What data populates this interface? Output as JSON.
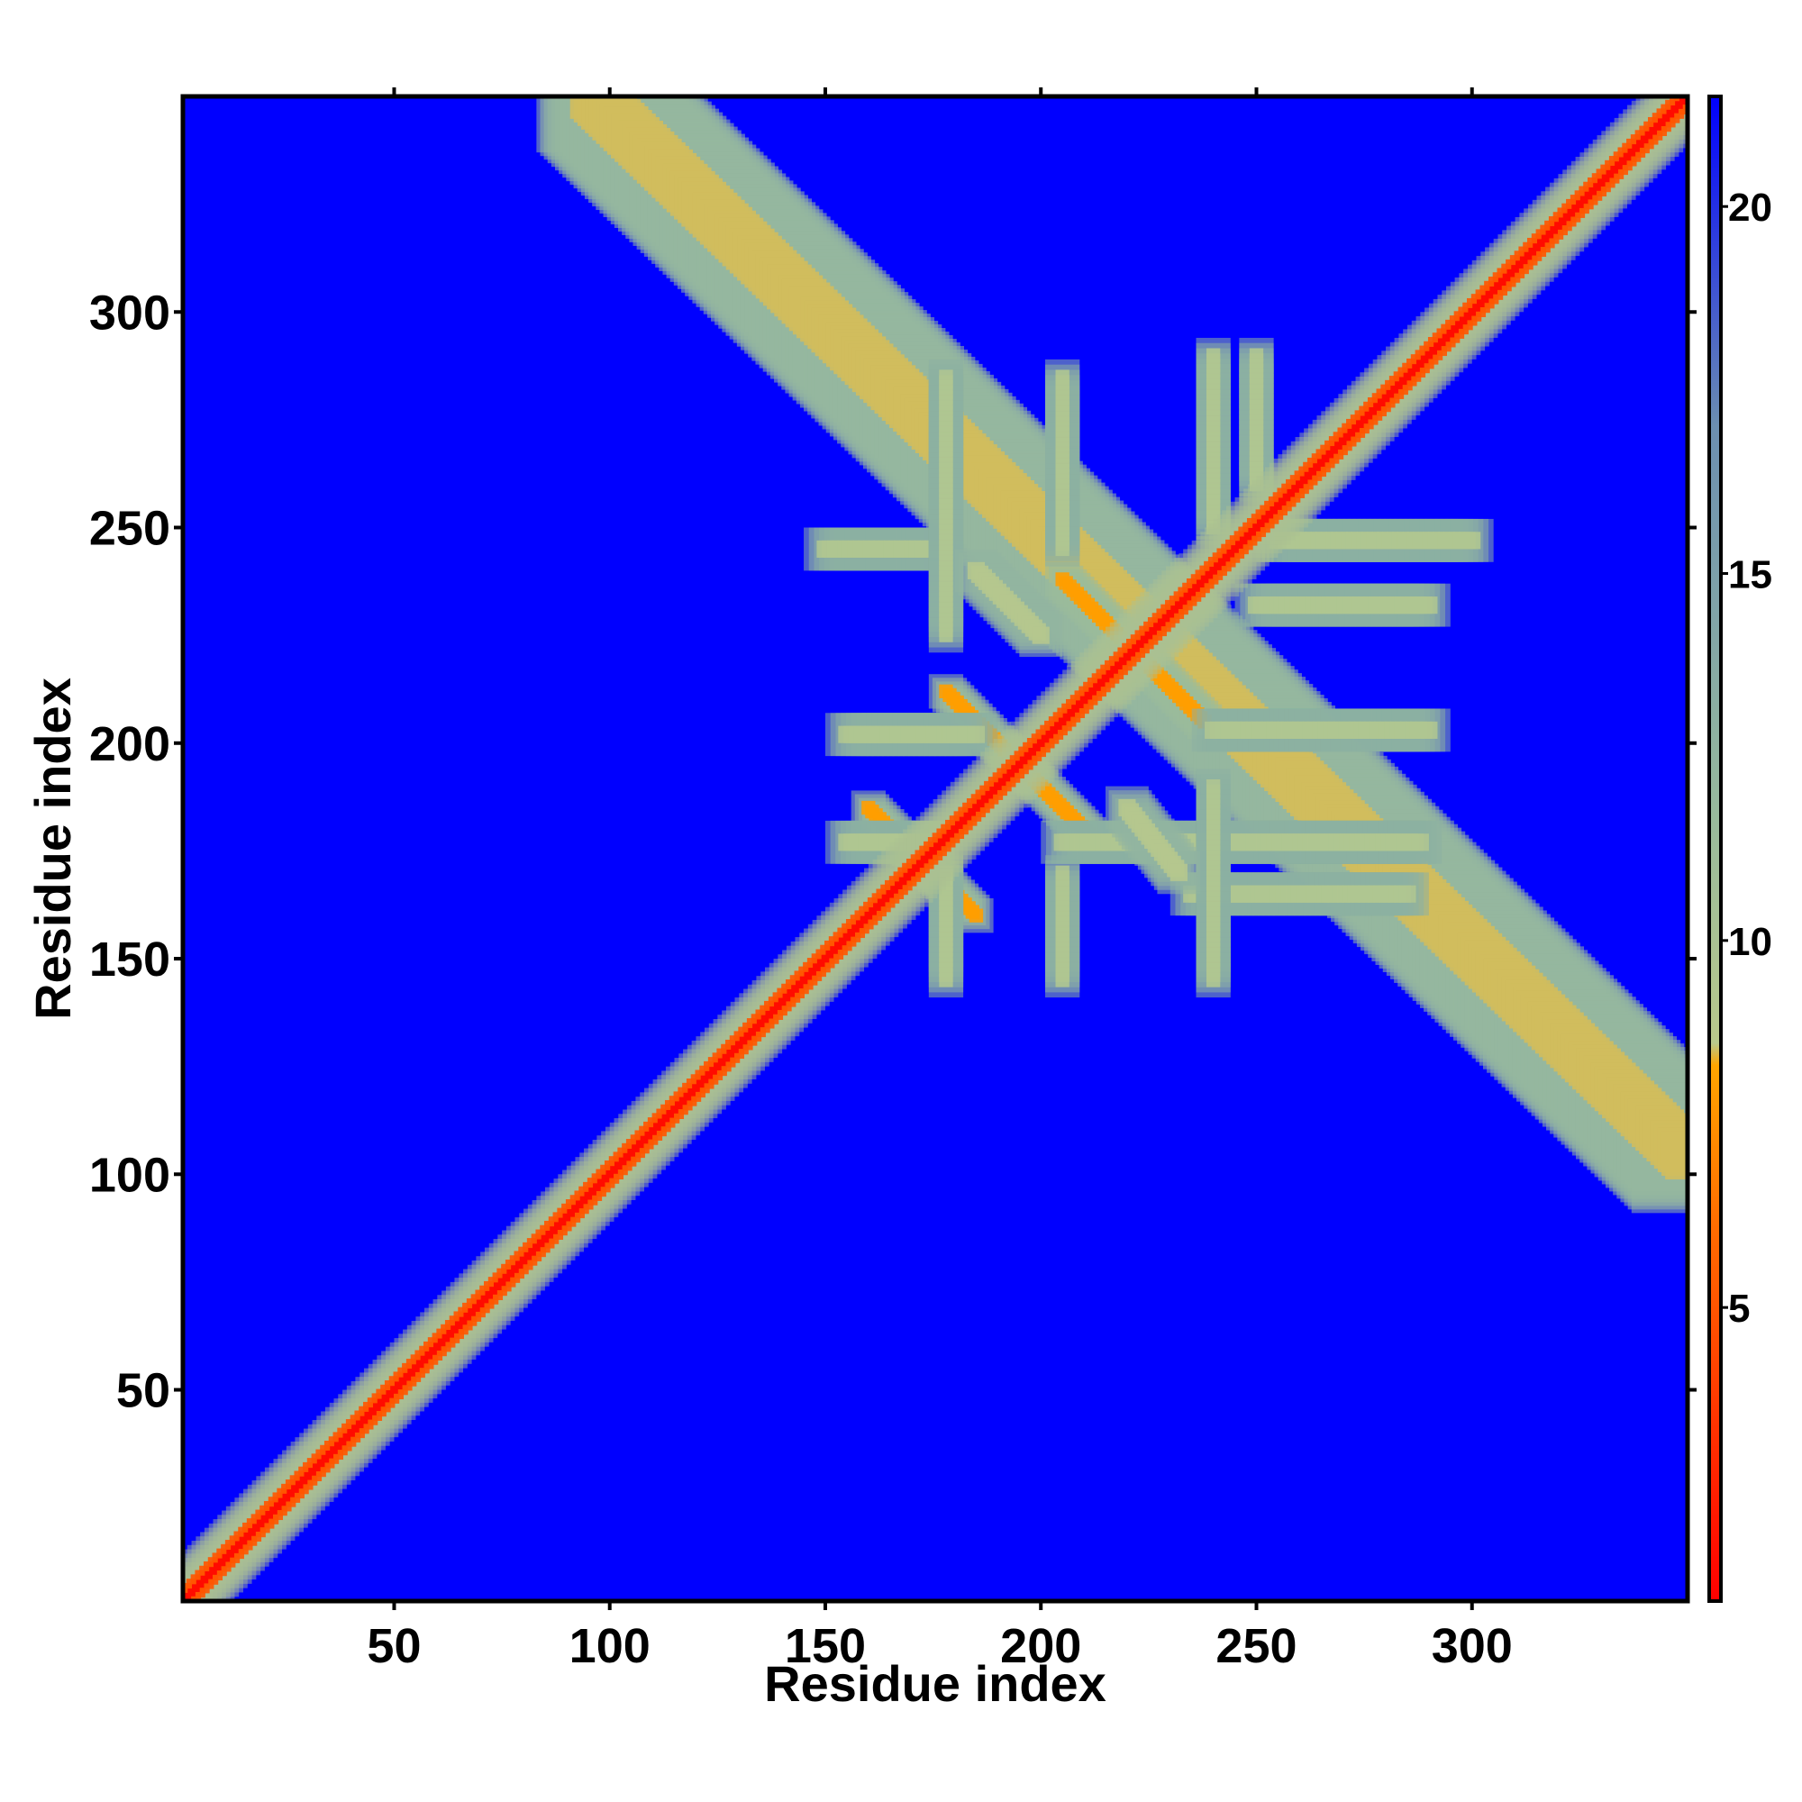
{
  "chart_data": {
    "type": "heatmap",
    "title": "",
    "xlabel": "Residue index",
    "ylabel": "Residue index",
    "xlim": [
      1,
      350
    ],
    "ylim": [
      1,
      350
    ],
    "x_ticks": [
      50,
      100,
      150,
      200,
      250,
      300
    ],
    "y_ticks": [
      50,
      100,
      150,
      200,
      250,
      300
    ],
    "colorbar": {
      "range": [
        1,
        21.5
      ],
      "ticks": [
        5,
        10,
        15,
        20
      ],
      "stops": [
        {
          "value": 1,
          "color": "#ff0000"
        },
        {
          "value": 6,
          "color": "#ff6a00"
        },
        {
          "value": 8.3,
          "color": "#ffa500"
        },
        {
          "value": 8.6,
          "color": "#b9c98c"
        },
        {
          "value": 12,
          "color": "#95b89e"
        },
        {
          "value": 17,
          "color": "#6c8fb1"
        },
        {
          "value": 21.5,
          "color": "#0000ff"
        }
      ]
    },
    "background_value": 21.5,
    "diagonal": {
      "core_value": 1.5,
      "halfwidth_residues": 6
    },
    "contact_bands": [
      {
        "name": "terminal-antiparallel",
        "from": [
          96,
          350
        ],
        "to": [
          350,
          104
        ],
        "value": 8.5,
        "halfwidth": 13
      },
      {
        "name": "hairpin-170",
        "from": [
          160,
          185
        ],
        "to": [
          185,
          160
        ],
        "value": 8,
        "halfwidth": 4
      },
      {
        "name": "hairpin-195",
        "from": [
          178,
          212
        ],
        "to": [
          212,
          178
        ],
        "value": 8,
        "halfwidth": 4
      },
      {
        "name": "hairpin-220",
        "from": [
          205,
          238
        ],
        "to": [
          238,
          205
        ],
        "value": 8,
        "halfwidth": 4
      },
      {
        "name": "arm-lower-right-1",
        "from": [
          205,
          177
        ],
        "to": [
          288,
          177
        ],
        "value": 9.5,
        "halfwidth": 5
      },
      {
        "name": "arm-lower-right-2",
        "from": [
          240,
          203
        ],
        "to": [
          290,
          203
        ],
        "value": 9.5,
        "halfwidth": 5
      },
      {
        "name": "arm-lower-right-3",
        "from": [
          250,
          232
        ],
        "to": [
          290,
          232
        ],
        "value": 9.5,
        "halfwidth": 5
      },
      {
        "name": "arm-lower-right-4",
        "from": [
          255,
          247
        ],
        "to": [
          300,
          247
        ],
        "value": 9.5,
        "halfwidth": 5
      },
      {
        "name": "arm-lower-right-5",
        "from": [
          235,
          165
        ],
        "to": [
          285,
          165
        ],
        "value": 9.5,
        "halfwidth": 5
      },
      {
        "name": "arm-upper-left-1",
        "from": [
          150,
          245
        ],
        "to": [
          175,
          245
        ],
        "value": 9.5,
        "halfwidth": 5
      },
      {
        "name": "arm-upper-left-2",
        "from": [
          155,
          202
        ],
        "to": [
          185,
          202
        ],
        "value": 9.5,
        "halfwidth": 5
      },
      {
        "name": "arm-upper-left-3",
        "from": [
          155,
          177
        ],
        "to": [
          175,
          177
        ],
        "value": 9.5,
        "halfwidth": 5
      },
      {
        "name": "arm-vertical-1",
        "from": [
          178,
          285
        ],
        "to": [
          178,
          225
        ],
        "value": 9.5,
        "halfwidth": 4
      },
      {
        "name": "arm-vertical-2",
        "from": [
          205,
          285
        ],
        "to": [
          205,
          245
        ],
        "value": 9.5,
        "halfwidth": 4
      },
      {
        "name": "arm-vertical-3",
        "from": [
          240,
          290
        ],
        "to": [
          240,
          250
        ],
        "value": 9.5,
        "halfwidth": 4
      },
      {
        "name": "arm-vertical-4",
        "from": [
          250,
          290
        ],
        "to": [
          250,
          260
        ],
        "value": 9.5,
        "halfwidth": 4
      },
      {
        "name": "arm-vertical-5",
        "from": [
          240,
          190
        ],
        "to": [
          240,
          145
        ],
        "value": 9.5,
        "halfwidth": 4
      },
      {
        "name": "arm-vertical-6",
        "from": [
          205,
          170
        ],
        "to": [
          205,
          145
        ],
        "value": 9.5,
        "halfwidth": 4
      },
      {
        "name": "arm-vertical-7",
        "from": [
          178,
          170
        ],
        "to": [
          178,
          145
        ],
        "value": 9.5,
        "halfwidth": 4
      },
      {
        "name": "ring-upper-left",
        "from": [
          185,
          240
        ],
        "to": [
          200,
          225
        ],
        "value": 9,
        "halfwidth": 5
      },
      {
        "name": "ring-lower-right",
        "from": [
          220,
          185
        ],
        "to": [
          232,
          170
        ],
        "value": 9,
        "halfwidth": 5
      }
    ]
  }
}
